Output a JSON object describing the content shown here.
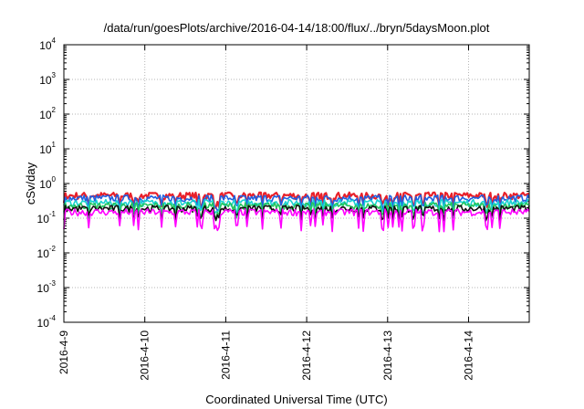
{
  "chart_data": {
    "type": "line",
    "title": "/data/run/goesPlots/archive/2016-04-14/18:00/flux/../bryn/5daysMoon.plot",
    "xlabel": "Coordinated Universal Time (UTC)",
    "ylabel": "cSv/day",
    "yscale": "log",
    "ylim": [
      0.0001,
      10000
    ],
    "y_ticks": [
      {
        "base": "10",
        "exp": "-4",
        "value": 0.0001
      },
      {
        "base": "10",
        "exp": "-3",
        "value": 0.001
      },
      {
        "base": "10",
        "exp": "-2",
        "value": 0.01
      },
      {
        "base": "10",
        "exp": "-1",
        "value": 0.1
      },
      {
        "base": "10",
        "exp": "0",
        "value": 1
      },
      {
        "base": "10",
        "exp": "1",
        "value": 10
      },
      {
        "base": "10",
        "exp": "2",
        "value": 100
      },
      {
        "base": "10",
        "exp": "3",
        "value": 1000
      },
      {
        "base": "10",
        "exp": "4",
        "value": 10000
      }
    ],
    "xlim": [
      "2016-04-09T00:00",
      "2016-04-14T18:00"
    ],
    "x_ticks": [
      "2016-4-9",
      "2016-4-10",
      "2016-4-11",
      "2016-4-12",
      "2016-4-13",
      "2016-4-14"
    ],
    "grid": true,
    "series": [
      {
        "color": "#e8202a",
        "level": 0.45,
        "values": []
      },
      {
        "color": "#1f5fe0",
        "level": 0.38,
        "values": []
      },
      {
        "color": "#19d2d2",
        "level": 0.28,
        "values": []
      },
      {
        "color": "#22c55e",
        "level": 0.23,
        "values": []
      },
      {
        "color": "#111111",
        "level": 0.19,
        "values": []
      },
      {
        "color": "#ff00ff",
        "level": 0.15,
        "values": []
      }
    ]
  }
}
